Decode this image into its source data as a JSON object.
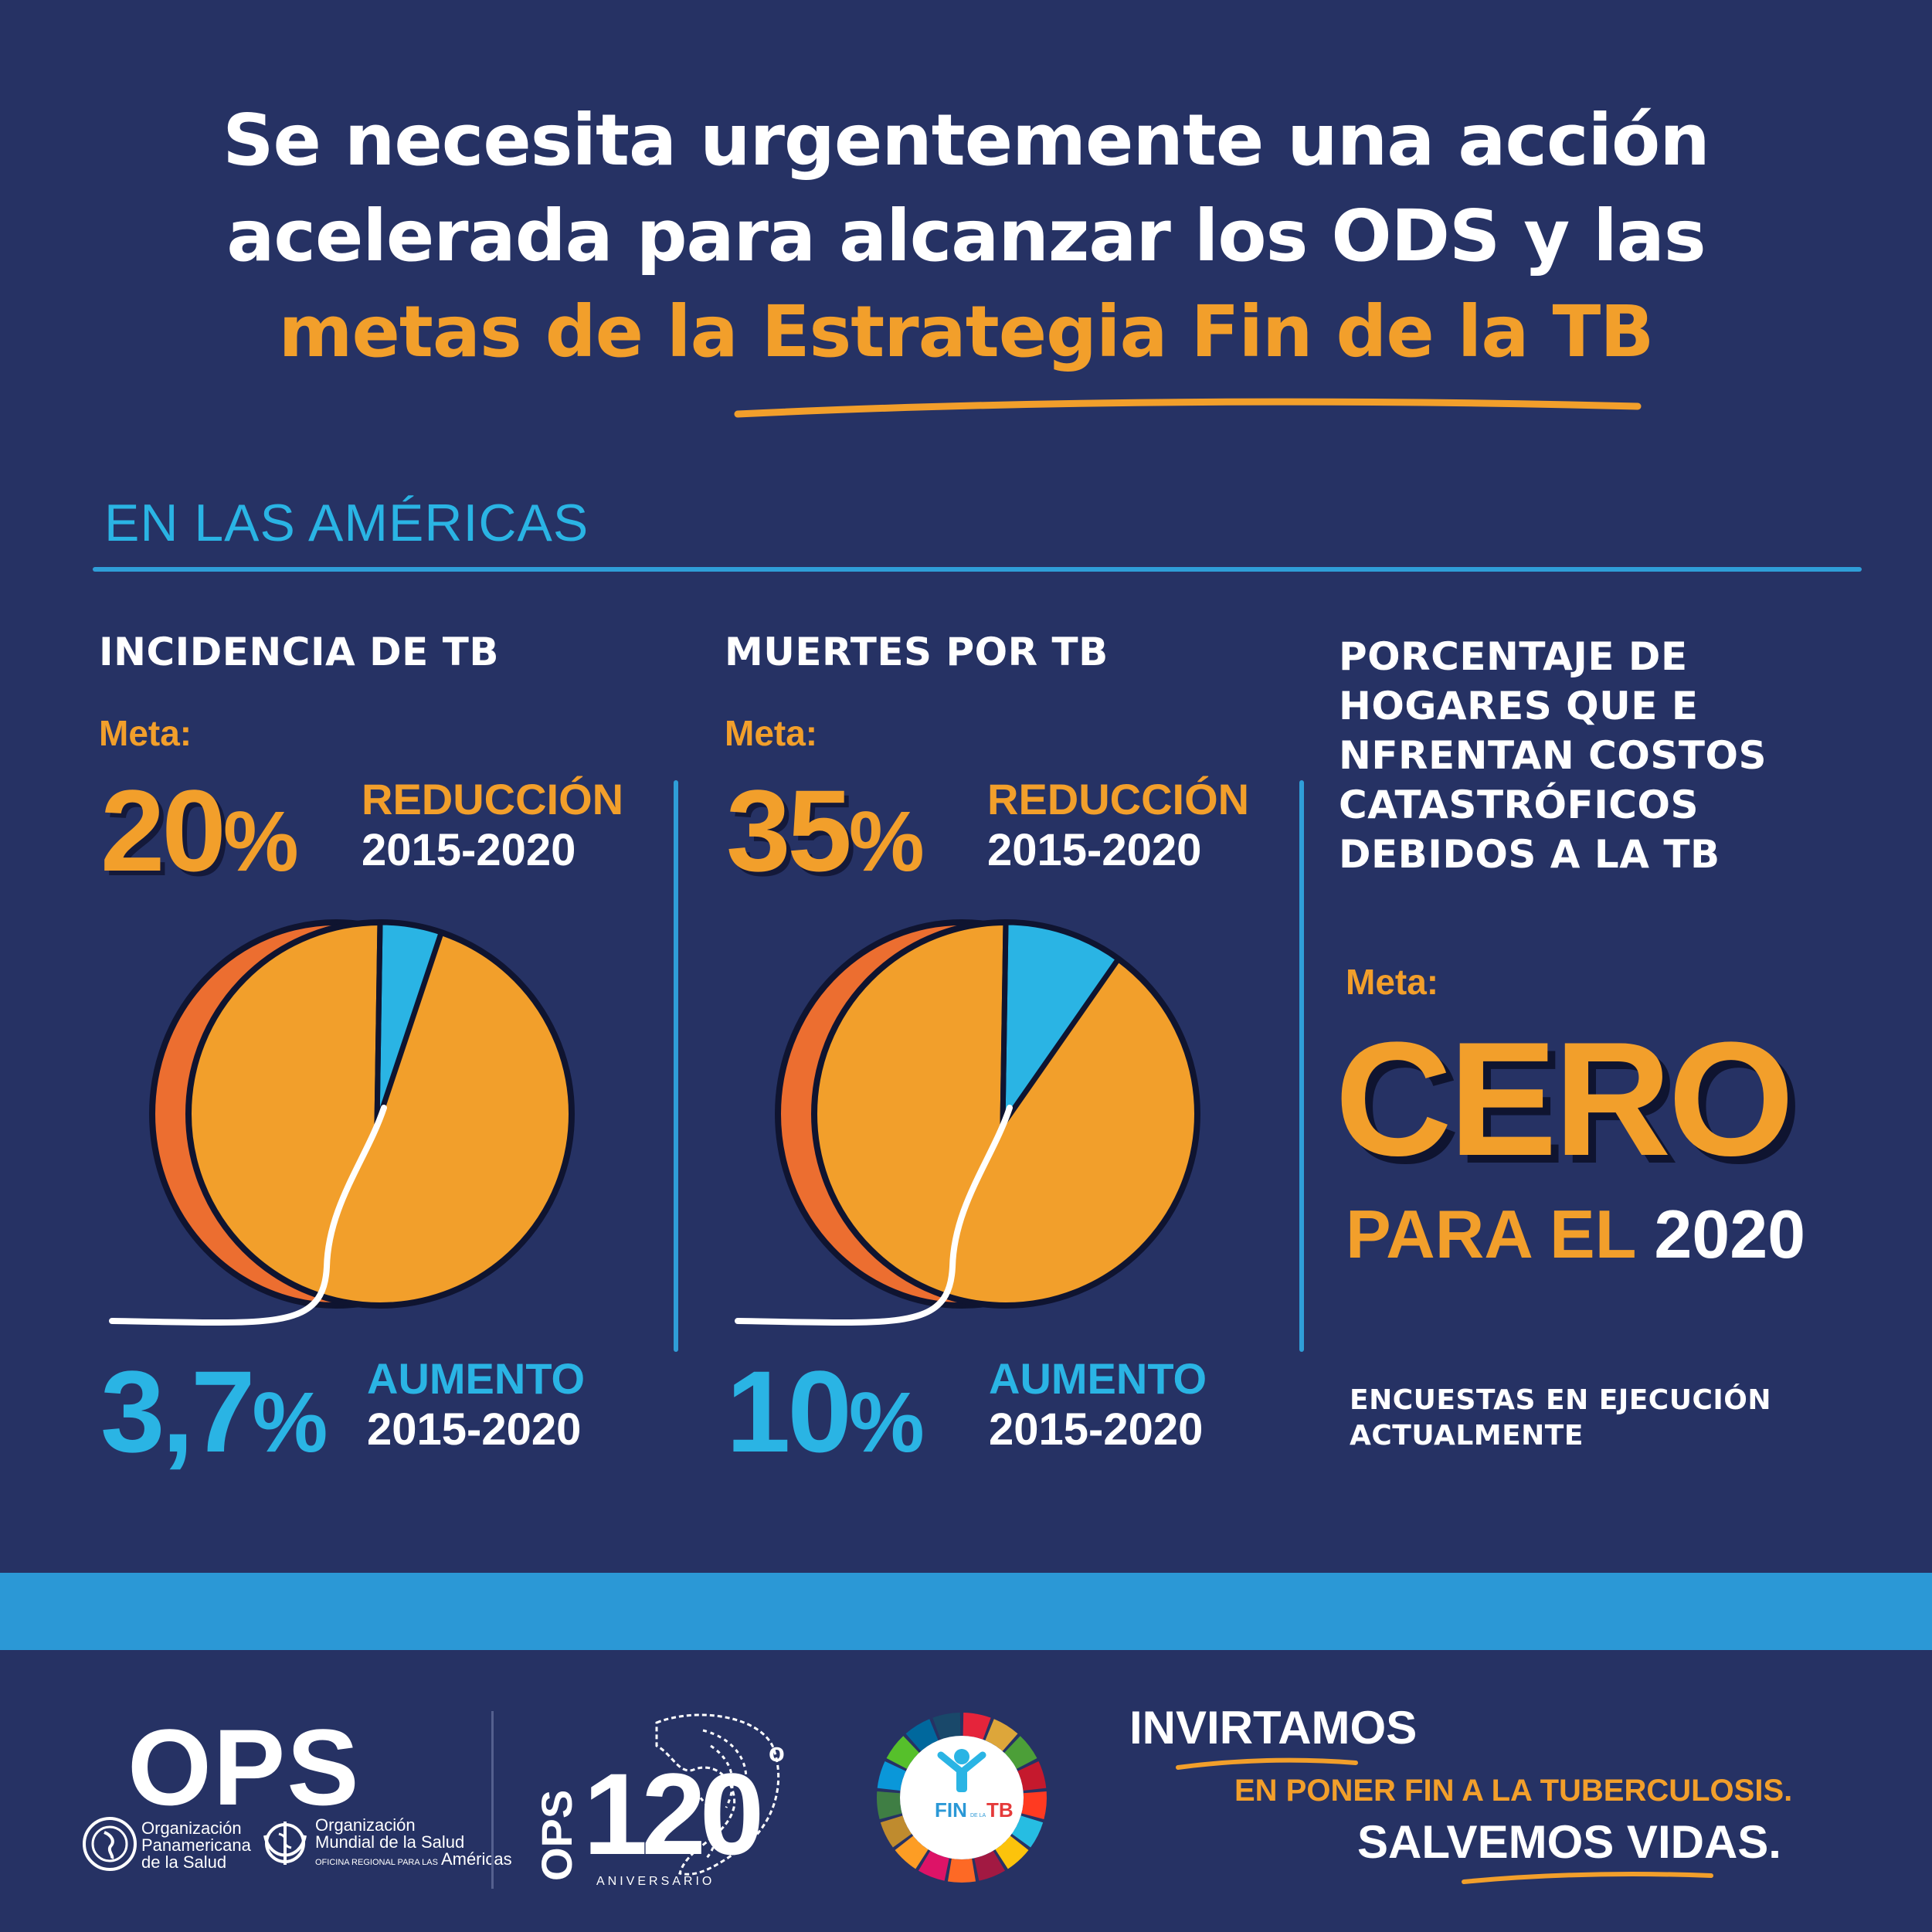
{
  "headline": {
    "line1": "Se necesita urgentemente una acción",
    "line2": "acelerada para alcanzar los ODS y las",
    "line3": "metas de la Estrategia Fin de la TB"
  },
  "section_title": "EN LAS AMÉRICAS",
  "columns": [
    {
      "title": "INCIDENCIA DE TB",
      "meta_label": "Meta:",
      "target_value": "20",
      "target_symbol": "%",
      "target_label": "REDUCCIÓN",
      "target_years": "2015-2020",
      "actual_value": "3,7",
      "actual_symbol": "%",
      "actual_label": "AUMENTO",
      "actual_years": "2015-2020",
      "pie_actual_fraction": 0.037
    },
    {
      "title": "MUERTES POR TB",
      "meta_label": "Meta:",
      "target_value": "35",
      "target_symbol": "%",
      "target_label": "REDUCCIÓN",
      "target_years": "2015-2020",
      "actual_value": "10",
      "actual_symbol": "%",
      "actual_label": "AUMENTO",
      "actual_years": "2015-2020",
      "pie_actual_fraction": 0.1
    },
    {
      "title_lines": [
        "PORCENTAJE DE",
        "HOGARES QUE E",
        "NFRENTAN COSTOS",
        "CATASTRÓFICOS",
        "DEBIDOS A LA TB"
      ],
      "meta_label": "Meta:",
      "big_value": "CERO",
      "para_label": "PARA EL",
      "para_year": "2020",
      "note_lines": [
        "ENCUESTAS EN EJECUCIÓN",
        "ACTUALMENTE"
      ]
    }
  ],
  "footer": {
    "ops_wordmark": "OPS",
    "org1_lines": [
      "Organización",
      "Panamericana",
      "de la Salud"
    ],
    "org2_lines": [
      "Organización",
      "Mundial de la Salud"
    ],
    "org2_small": "OFICINA REGIONAL PARA LAS",
    "org2_region": "Américas",
    "anniv_prefix": "OPS",
    "anniv_number": "120",
    "anniv_sup": "o",
    "anniv_label": "ANIVERSARIO",
    "fin_tb_fin": "FIN",
    "fin_tb_de": "DE LA",
    "fin_tb_tb": "TB",
    "slogan_line1": "INVIRTAMOS",
    "slogan_line2": "EN PONER FIN A LA TUBERCULOSIS.",
    "slogan_line3": "SALVEMOS VIDAS."
  },
  "colors": {
    "background": "#263264",
    "orange": "#f29f2b",
    "dark_orange": "#ec6e30",
    "blue": "#2ab4e4",
    "band_blue": "#2b98d6"
  },
  "icons": [
    "who-emblem-icon",
    "paho-emblem-icon",
    "americas-globe-icon",
    "raised-arms-person-icon",
    "sdg-wheel-icon"
  ]
}
